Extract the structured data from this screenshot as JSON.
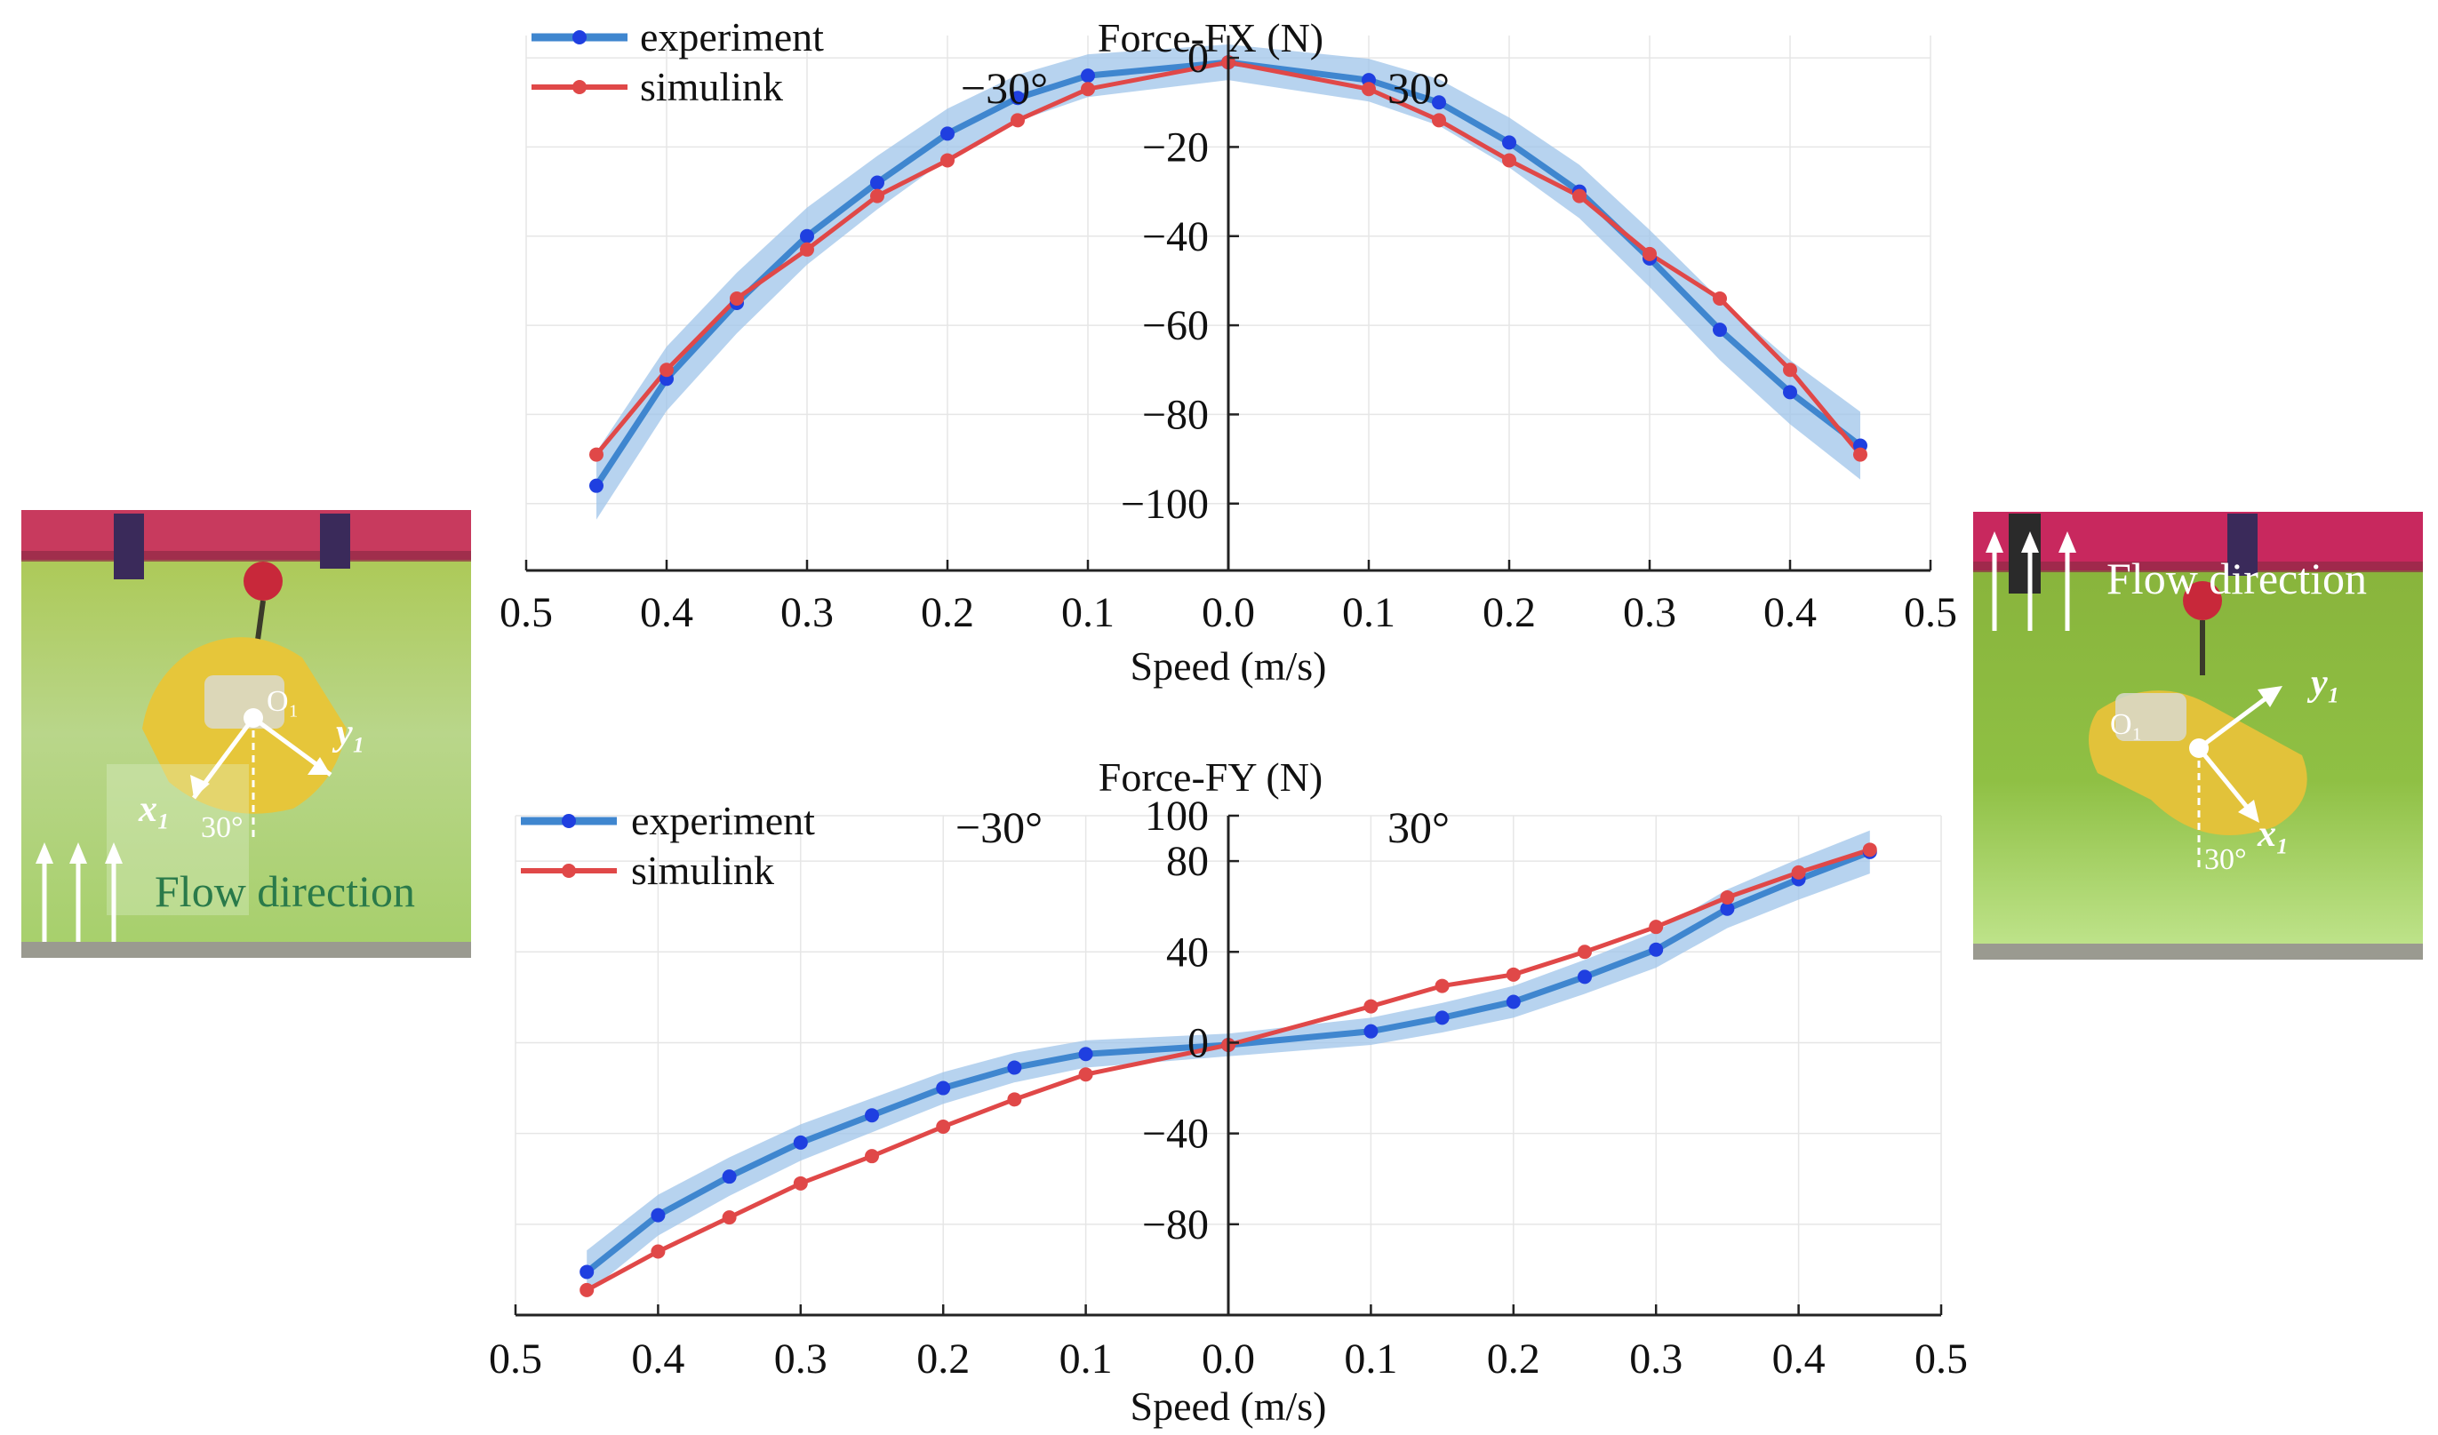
{
  "chart_data": [
    {
      "type": "line",
      "title": "Force-FX (N)",
      "xlabel": "Speed (m/s)",
      "ylabel": "",
      "x_tick_labels": [
        "0.5",
        "0.4",
        "0.3",
        "0.2",
        "0.1",
        "0.0",
        "0.1",
        "0.2",
        "0.3",
        "0.4",
        "0.5"
      ],
      "y_tick_labels": [
        "0",
        "−20",
        "−40",
        "−60",
        "−80",
        "−100"
      ],
      "y_ticks": [
        0,
        -20,
        -40,
        -60,
        -80,
        -100
      ],
      "ylim": [
        -115,
        5
      ],
      "xlim": [
        -0.5,
        0.5
      ],
      "annotations": {
        "left": "−30°",
        "right": "30°"
      },
      "legend": [
        "experiment",
        "simulink"
      ],
      "legend_position": "top-left",
      "x": [
        -0.45,
        -0.4,
        -0.35,
        -0.3,
        -0.25,
        -0.2,
        -0.15,
        -0.1,
        0.0,
        0.1,
        0.15,
        0.2,
        0.25,
        0.3,
        0.35,
        0.4,
        0.45
      ],
      "series": [
        {
          "name": "experiment",
          "color": "#1f3fe0",
          "line_color": "#3f86cf",
          "band": 4,
          "values": [
            -96,
            -72,
            -55,
            -40,
            -28,
            -17,
            -9,
            -4,
            -1,
            -5,
            -10,
            -19,
            -30,
            -45,
            -61,
            -75,
            -87
          ]
        },
        {
          "name": "simulink",
          "color": "#e04848",
          "line_color": "#e04848",
          "values": [
            -89,
            -70,
            -54,
            -43,
            -31,
            -23,
            -14,
            -7,
            -1,
            -7,
            -14,
            -23,
            -31,
            -44,
            -54,
            -70,
            -89
          ]
        }
      ]
    },
    {
      "type": "line",
      "title": "Force-FY (N)",
      "xlabel": "Speed (m/s)",
      "ylabel": "",
      "x_tick_labels": [
        "0.5",
        "0.4",
        "0.3",
        "0.2",
        "0.1",
        "0.0",
        "0.1",
        "0.2",
        "0.3",
        "0.4",
        "0.5"
      ],
      "y_tick_labels": [
        "100",
        "80",
        "40",
        "0",
        "−40",
        "−80"
      ],
      "y_ticks": [
        100,
        80,
        40,
        0,
        -40,
        -80
      ],
      "ylim": [
        -120,
        100
      ],
      "xlim": [
        -0.5,
        0.5
      ],
      "annotations": {
        "left": "−30°",
        "right": "30°"
      },
      "legend": [
        "experiment",
        "simulink"
      ],
      "legend_position": "top-left",
      "x": [
        -0.45,
        -0.4,
        -0.35,
        -0.3,
        -0.25,
        -0.2,
        -0.15,
        -0.1,
        0.0,
        0.1,
        0.15,
        0.2,
        0.25,
        0.3,
        0.35,
        0.4,
        0.45
      ],
      "series": [
        {
          "name": "experiment",
          "color": "#1f3fe0",
          "line_color": "#3f86cf",
          "band": 5,
          "values": [
            -101,
            -76,
            -59,
            -44,
            -32,
            -20,
            -11,
            -5,
            -1,
            5,
            11,
            18,
            29,
            41,
            59,
            72,
            84
          ]
        },
        {
          "name": "simulink",
          "color": "#e04848",
          "line_color": "#e04848",
          "values": [
            -109,
            -92,
            -77,
            -62,
            -50,
            -37,
            -25,
            -14,
            -1,
            16,
            25,
            30,
            40,
            51,
            64,
            75,
            85
          ]
        }
      ]
    }
  ],
  "photos": {
    "left": {
      "flow_label": "Flow direction",
      "origin_label": "O₁",
      "y_axis_label": "y₁",
      "x_axis_label": "x₁",
      "angle_label": "30°"
    },
    "right": {
      "flow_label": "Flow direction",
      "origin_label": "O₁",
      "y_axis_label": "y₁",
      "x_axis_label": "x₁",
      "angle_label": "30°"
    }
  }
}
